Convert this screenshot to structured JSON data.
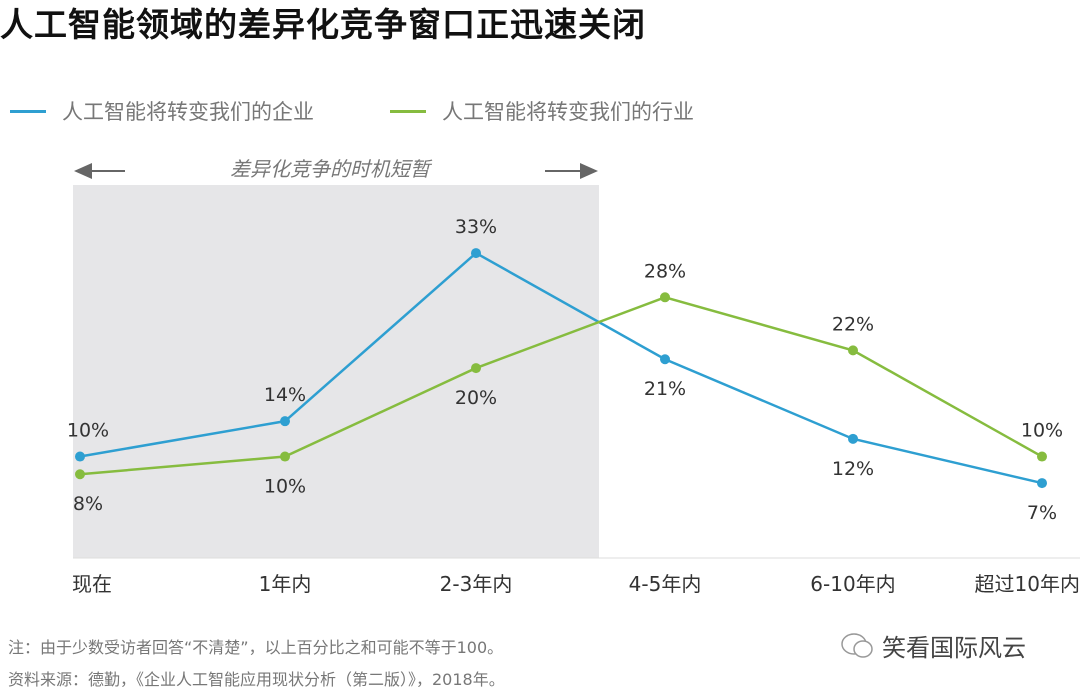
{
  "title": "人工智能领域的差异化竞争窗口正迅速关闭",
  "chart_data": {
    "type": "line",
    "title": "人工智能领域的差异化竞争窗口正迅速关闭",
    "categories": [
      "现在",
      "1年内",
      "2-3年内",
      "4-5年内",
      "6-10年内",
      "超过10年内"
    ],
    "series": [
      {
        "name": "人工智能将转变我们的企业",
        "color": "#2e9fd1",
        "values": [
          10,
          14,
          33,
          21,
          12,
          7
        ],
        "label_pos": [
          "above",
          "above",
          "above",
          "below",
          "below",
          "below"
        ]
      },
      {
        "name": "人工智能将转变我们的行业",
        "color": "#86bc3f",
        "values": [
          8,
          10,
          20,
          28,
          22,
          10
        ],
        "label_pos": [
          "below",
          "below",
          "below",
          "above",
          "above",
          "above"
        ]
      }
    ],
    "shaded_region": {
      "from": "现在",
      "to": "2-3年内",
      "label": "差异化竞争的时机短暂",
      "color": "#e6e6e8"
    },
    "ylim": [
      0,
      40
    ],
    "value_suffix": "%",
    "legend": "top-left"
  },
  "notes": [
    "注：由于少数受访者回答“不清楚”，以上百分比之和可能不等于100。",
    "资料来源：德勤，《企业人工智能应用现状分析（第二版）》，2018年。"
  ],
  "watermark": "笑看国际风云"
}
